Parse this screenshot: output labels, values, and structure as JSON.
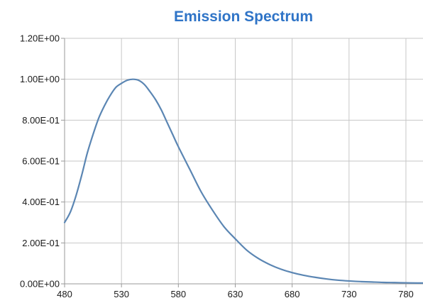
{
  "chart_data": {
    "type": "line",
    "title": "Emission Spectrum",
    "xlabel": "",
    "ylabel": "",
    "xlim": [
      480,
      795
    ],
    "ylim": [
      0,
      1.2
    ],
    "x_ticks": [
      480,
      530,
      580,
      630,
      680,
      730,
      780
    ],
    "x_tick_labels": [
      "480",
      "530",
      "580",
      "630",
      "680",
      "730",
      "780"
    ],
    "y_ticks": [
      0,
      0.2,
      0.4,
      0.6,
      0.8,
      1.0,
      1.2
    ],
    "y_tick_labels": [
      "0.00E+00",
      "2.00E-01",
      "4.00E-01",
      "6.00E-01",
      "8.00E-01",
      "1.00E+00",
      "1.20E+00"
    ],
    "grid": true,
    "legend": "none",
    "colors": {
      "line": "#5b86b3",
      "grid": "#c7c7c7",
      "title": "#2f74c7",
      "axis": "#9a9a9a"
    },
    "series": [
      {
        "x": [
          480,
          485,
          490,
          495,
          500,
          505,
          510,
          515,
          520,
          525,
          530,
          535,
          540,
          545,
          550,
          555,
          560,
          565,
          570,
          575,
          580,
          590,
          600,
          610,
          620,
          630,
          640,
          650,
          660,
          670,
          680,
          690,
          700,
          710,
          720,
          730,
          740,
          750,
          760,
          770,
          780,
          790,
          795
        ],
        "y": [
          0.3,
          0.35,
          0.43,
          0.53,
          0.64,
          0.73,
          0.81,
          0.87,
          0.92,
          0.96,
          0.98,
          0.995,
          1.0,
          0.995,
          0.975,
          0.94,
          0.9,
          0.85,
          0.79,
          0.73,
          0.67,
          0.56,
          0.45,
          0.36,
          0.28,
          0.22,
          0.165,
          0.125,
          0.095,
          0.072,
          0.055,
          0.042,
          0.032,
          0.024,
          0.018,
          0.014,
          0.011,
          0.009,
          0.007,
          0.006,
          0.005,
          0.004,
          0.004
        ]
      }
    ]
  }
}
